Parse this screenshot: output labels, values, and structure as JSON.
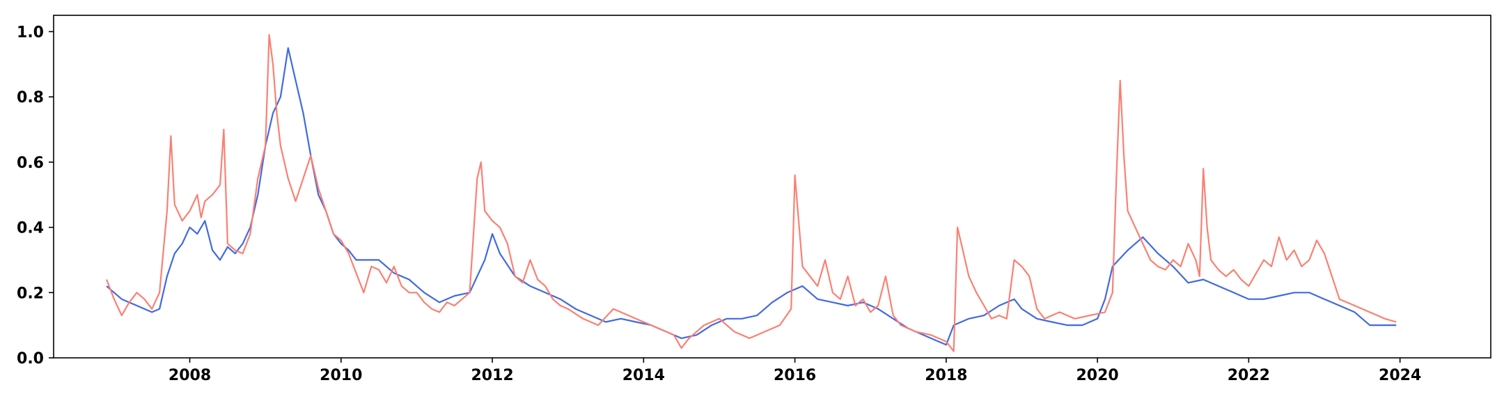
{
  "chart_data": {
    "type": "line",
    "title": "",
    "xlabel": "",
    "ylabel": "",
    "xlim": [
      2006.2,
      2025.2
    ],
    "ylim": [
      0.0,
      1.05
    ],
    "grid": false,
    "legend": "none",
    "x_ticks": [
      2008,
      2010,
      2012,
      2014,
      2016,
      2018,
      2020,
      2022,
      2024
    ],
    "x_tick_labels": [
      "2008",
      "2010",
      "2012",
      "2014",
      "2016",
      "2018",
      "2020",
      "2022",
      "2024"
    ],
    "y_ticks": [
      0.0,
      0.2,
      0.4,
      0.6,
      0.8,
      1.0
    ],
    "y_tick_labels": [
      "0.0",
      "0.2",
      "0.4",
      "0.6",
      "0.8",
      "1.0"
    ],
    "series": [
      {
        "name": "series-blue",
        "color": "#4169e1",
        "points": [
          [
            2006.9,
            0.22
          ],
          [
            2007.1,
            0.18
          ],
          [
            2007.3,
            0.16
          ],
          [
            2007.5,
            0.14
          ],
          [
            2007.6,
            0.15
          ],
          [
            2007.7,
            0.25
          ],
          [
            2007.8,
            0.32
          ],
          [
            2007.9,
            0.35
          ],
          [
            2008.0,
            0.4
          ],
          [
            2008.1,
            0.38
          ],
          [
            2008.2,
            0.42
          ],
          [
            2008.3,
            0.33
          ],
          [
            2008.4,
            0.3
          ],
          [
            2008.5,
            0.34
          ],
          [
            2008.6,
            0.32
          ],
          [
            2008.7,
            0.35
          ],
          [
            2008.8,
            0.4
          ],
          [
            2008.9,
            0.5
          ],
          [
            2009.0,
            0.65
          ],
          [
            2009.1,
            0.75
          ],
          [
            2009.2,
            0.8
          ],
          [
            2009.3,
            0.95
          ],
          [
            2009.4,
            0.85
          ],
          [
            2009.5,
            0.75
          ],
          [
            2009.6,
            0.62
          ],
          [
            2009.7,
            0.5
          ],
          [
            2009.8,
            0.45
          ],
          [
            2009.9,
            0.38
          ],
          [
            2010.0,
            0.35
          ],
          [
            2010.1,
            0.33
          ],
          [
            2010.2,
            0.3
          ],
          [
            2010.3,
            0.3
          ],
          [
            2010.5,
            0.3
          ],
          [
            2010.7,
            0.26
          ],
          [
            2010.9,
            0.24
          ],
          [
            2011.0,
            0.22
          ],
          [
            2011.1,
            0.2
          ],
          [
            2011.3,
            0.17
          ],
          [
            2011.5,
            0.19
          ],
          [
            2011.7,
            0.2
          ],
          [
            2011.9,
            0.3
          ],
          [
            2012.0,
            0.38
          ],
          [
            2012.1,
            0.32
          ],
          [
            2012.3,
            0.25
          ],
          [
            2012.5,
            0.22
          ],
          [
            2012.7,
            0.2
          ],
          [
            2012.9,
            0.18
          ],
          [
            2013.1,
            0.15
          ],
          [
            2013.3,
            0.13
          ],
          [
            2013.5,
            0.11
          ],
          [
            2013.7,
            0.12
          ],
          [
            2013.9,
            0.11
          ],
          [
            2014.1,
            0.1
          ],
          [
            2014.3,
            0.08
          ],
          [
            2014.5,
            0.06
          ],
          [
            2014.7,
            0.07
          ],
          [
            2014.9,
            0.1
          ],
          [
            2015.1,
            0.12
          ],
          [
            2015.3,
            0.12
          ],
          [
            2015.5,
            0.13
          ],
          [
            2015.7,
            0.17
          ],
          [
            2015.9,
            0.2
          ],
          [
            2016.1,
            0.22
          ],
          [
            2016.3,
            0.18
          ],
          [
            2016.5,
            0.17
          ],
          [
            2016.7,
            0.16
          ],
          [
            2016.9,
            0.17
          ],
          [
            2017.1,
            0.15
          ],
          [
            2017.3,
            0.12
          ],
          [
            2017.5,
            0.09
          ],
          [
            2017.7,
            0.07
          ],
          [
            2017.9,
            0.05
          ],
          [
            2018.0,
            0.04
          ],
          [
            2018.1,
            0.1
          ],
          [
            2018.3,
            0.12
          ],
          [
            2018.5,
            0.13
          ],
          [
            2018.7,
            0.16
          ],
          [
            2018.9,
            0.18
          ],
          [
            2019.0,
            0.15
          ],
          [
            2019.2,
            0.12
          ],
          [
            2019.4,
            0.11
          ],
          [
            2019.6,
            0.1
          ],
          [
            2019.8,
            0.1
          ],
          [
            2020.0,
            0.12
          ],
          [
            2020.1,
            0.18
          ],
          [
            2020.2,
            0.28
          ],
          [
            2020.4,
            0.33
          ],
          [
            2020.6,
            0.37
          ],
          [
            2020.8,
            0.32
          ],
          [
            2021.0,
            0.28
          ],
          [
            2021.2,
            0.23
          ],
          [
            2021.4,
            0.24
          ],
          [
            2021.6,
            0.22
          ],
          [
            2021.8,
            0.2
          ],
          [
            2022.0,
            0.18
          ],
          [
            2022.2,
            0.18
          ],
          [
            2022.4,
            0.19
          ],
          [
            2022.6,
            0.2
          ],
          [
            2022.8,
            0.2
          ],
          [
            2023.0,
            0.18
          ],
          [
            2023.2,
            0.16
          ],
          [
            2023.4,
            0.14
          ],
          [
            2023.6,
            0.1
          ],
          [
            2023.8,
            0.1
          ],
          [
            2023.95,
            0.1
          ]
        ]
      },
      {
        "name": "series-salmon",
        "color": "#fa8072",
        "points": [
          [
            2006.9,
            0.24
          ],
          [
            2007.0,
            0.18
          ],
          [
            2007.1,
            0.13
          ],
          [
            2007.2,
            0.17
          ],
          [
            2007.3,
            0.2
          ],
          [
            2007.4,
            0.18
          ],
          [
            2007.5,
            0.15
          ],
          [
            2007.6,
            0.2
          ],
          [
            2007.7,
            0.45
          ],
          [
            2007.75,
            0.68
          ],
          [
            2007.8,
            0.47
          ],
          [
            2007.9,
            0.42
          ],
          [
            2008.0,
            0.45
          ],
          [
            2008.1,
            0.5
          ],
          [
            2008.15,
            0.43
          ],
          [
            2008.2,
            0.48
          ],
          [
            2008.3,
            0.5
          ],
          [
            2008.4,
            0.53
          ],
          [
            2008.45,
            0.7
          ],
          [
            2008.5,
            0.35
          ],
          [
            2008.6,
            0.33
          ],
          [
            2008.7,
            0.32
          ],
          [
            2008.8,
            0.38
          ],
          [
            2008.9,
            0.55
          ],
          [
            2009.0,
            0.65
          ],
          [
            2009.05,
            0.99
          ],
          [
            2009.1,
            0.9
          ],
          [
            2009.15,
            0.75
          ],
          [
            2009.2,
            0.65
          ],
          [
            2009.3,
            0.55
          ],
          [
            2009.4,
            0.48
          ],
          [
            2009.5,
            0.55
          ],
          [
            2009.6,
            0.62
          ],
          [
            2009.7,
            0.52
          ],
          [
            2009.8,
            0.45
          ],
          [
            2009.9,
            0.38
          ],
          [
            2010.0,
            0.36
          ],
          [
            2010.1,
            0.32
          ],
          [
            2010.2,
            0.26
          ],
          [
            2010.3,
            0.2
          ],
          [
            2010.4,
            0.28
          ],
          [
            2010.5,
            0.27
          ],
          [
            2010.6,
            0.23
          ],
          [
            2010.7,
            0.28
          ],
          [
            2010.8,
            0.22
          ],
          [
            2010.9,
            0.2
          ],
          [
            2011.0,
            0.2
          ],
          [
            2011.1,
            0.17
          ],
          [
            2011.2,
            0.15
          ],
          [
            2011.3,
            0.14
          ],
          [
            2011.4,
            0.17
          ],
          [
            2011.5,
            0.16
          ],
          [
            2011.6,
            0.18
          ],
          [
            2011.7,
            0.2
          ],
          [
            2011.8,
            0.55
          ],
          [
            2011.85,
            0.6
          ],
          [
            2011.9,
            0.45
          ],
          [
            2012.0,
            0.42
          ],
          [
            2012.1,
            0.4
          ],
          [
            2012.2,
            0.35
          ],
          [
            2012.3,
            0.25
          ],
          [
            2012.4,
            0.23
          ],
          [
            2012.5,
            0.3
          ],
          [
            2012.6,
            0.24
          ],
          [
            2012.7,
            0.22
          ],
          [
            2012.8,
            0.18
          ],
          [
            2012.9,
            0.16
          ],
          [
            2013.0,
            0.15
          ],
          [
            2013.2,
            0.12
          ],
          [
            2013.4,
            0.1
          ],
          [
            2013.6,
            0.15
          ],
          [
            2013.8,
            0.13
          ],
          [
            2014.0,
            0.11
          ],
          [
            2014.2,
            0.09
          ],
          [
            2014.4,
            0.07
          ],
          [
            2014.5,
            0.03
          ],
          [
            2014.6,
            0.06
          ],
          [
            2014.8,
            0.1
          ],
          [
            2015.0,
            0.12
          ],
          [
            2015.2,
            0.08
          ],
          [
            2015.4,
            0.06
          ],
          [
            2015.6,
            0.08
          ],
          [
            2015.8,
            0.1
          ],
          [
            2015.95,
            0.15
          ],
          [
            2016.0,
            0.56
          ],
          [
            2016.05,
            0.42
          ],
          [
            2016.1,
            0.28
          ],
          [
            2016.2,
            0.25
          ],
          [
            2016.3,
            0.22
          ],
          [
            2016.4,
            0.3
          ],
          [
            2016.5,
            0.2
          ],
          [
            2016.6,
            0.18
          ],
          [
            2016.7,
            0.25
          ],
          [
            2016.8,
            0.16
          ],
          [
            2016.9,
            0.18
          ],
          [
            2017.0,
            0.14
          ],
          [
            2017.1,
            0.16
          ],
          [
            2017.2,
            0.25
          ],
          [
            2017.3,
            0.13
          ],
          [
            2017.4,
            0.1
          ],
          [
            2017.6,
            0.08
          ],
          [
            2017.8,
            0.07
          ],
          [
            2018.0,
            0.05
          ],
          [
            2018.1,
            0.02
          ],
          [
            2018.15,
            0.4
          ],
          [
            2018.2,
            0.35
          ],
          [
            2018.3,
            0.25
          ],
          [
            2018.4,
            0.2
          ],
          [
            2018.5,
            0.16
          ],
          [
            2018.6,
            0.12
          ],
          [
            2018.7,
            0.13
          ],
          [
            2018.8,
            0.12
          ],
          [
            2018.9,
            0.3
          ],
          [
            2019.0,
            0.28
          ],
          [
            2019.1,
            0.25
          ],
          [
            2019.2,
            0.15
          ],
          [
            2019.3,
            0.12
          ],
          [
            2019.5,
            0.14
          ],
          [
            2019.7,
            0.12
          ],
          [
            2019.9,
            0.13
          ],
          [
            2020.1,
            0.14
          ],
          [
            2020.2,
            0.2
          ],
          [
            2020.25,
            0.55
          ],
          [
            2020.3,
            0.85
          ],
          [
            2020.35,
            0.62
          ],
          [
            2020.4,
            0.45
          ],
          [
            2020.5,
            0.4
          ],
          [
            2020.6,
            0.35
          ],
          [
            2020.7,
            0.3
          ],
          [
            2020.8,
            0.28
          ],
          [
            2020.9,
            0.27
          ],
          [
            2021.0,
            0.3
          ],
          [
            2021.1,
            0.28
          ],
          [
            2021.2,
            0.35
          ],
          [
            2021.3,
            0.3
          ],
          [
            2021.35,
            0.25
          ],
          [
            2021.4,
            0.58
          ],
          [
            2021.45,
            0.4
          ],
          [
            2021.5,
            0.3
          ],
          [
            2021.6,
            0.27
          ],
          [
            2021.7,
            0.25
          ],
          [
            2021.8,
            0.27
          ],
          [
            2021.9,
            0.24
          ],
          [
            2022.0,
            0.22
          ],
          [
            2022.1,
            0.26
          ],
          [
            2022.2,
            0.3
          ],
          [
            2022.3,
            0.28
          ],
          [
            2022.4,
            0.37
          ],
          [
            2022.5,
            0.3
          ],
          [
            2022.6,
            0.33
          ],
          [
            2022.7,
            0.28
          ],
          [
            2022.8,
            0.3
          ],
          [
            2022.9,
            0.36
          ],
          [
            2023.0,
            0.32
          ],
          [
            2023.1,
            0.25
          ],
          [
            2023.2,
            0.18
          ],
          [
            2023.4,
            0.16
          ],
          [
            2023.6,
            0.14
          ],
          [
            2023.8,
            0.12
          ],
          [
            2023.95,
            0.11
          ]
        ]
      }
    ]
  }
}
